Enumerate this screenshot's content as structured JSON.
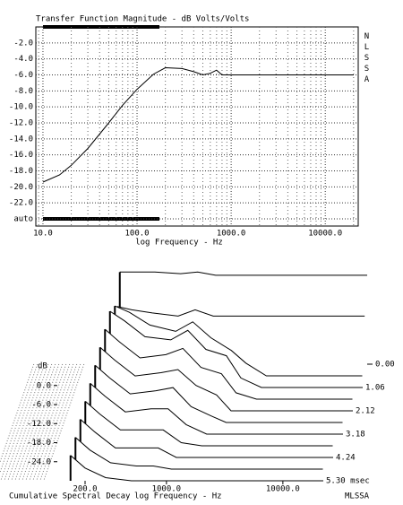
{
  "chart_data": [
    {
      "type": "line",
      "title": "Transfer Function Magnitude - dB Volts/Volts",
      "x_label": "log Frequency - Hz",
      "side_label": "NLSSA",
      "log_x": true,
      "grid": true,
      "color": "#000000",
      "x": [
        10,
        15,
        20,
        30,
        40,
        50,
        70,
        100,
        150,
        200,
        300,
        400,
        500,
        600,
        700,
        800,
        1000,
        20000
      ],
      "values": [
        -19.4,
        -18.5,
        -17.3,
        -15.2,
        -13.4,
        -12.0,
        -9.8,
        -7.8,
        -5.9,
        -5.1,
        -5.2,
        -5.6,
        -6.0,
        -5.8,
        -5.4,
        -6.0,
        -6.0,
        -6.0
      ],
      "xlim": [
        8.4,
        22400
      ],
      "xticks": [
        {
          "value": 10,
          "label": "10.0"
        },
        {
          "value": 100,
          "label": "100.0"
        },
        {
          "value": 1000,
          "label": "1000.0"
        },
        {
          "value": 10000,
          "label": "10000.0"
        }
      ],
      "ylim": [
        -24,
        0
      ],
      "yticks": [
        {
          "value": -2,
          "label": "-2.0"
        },
        {
          "value": -4,
          "label": "-4.0"
        },
        {
          "value": -6,
          "label": "-6.0"
        },
        {
          "value": -8,
          "label": "-8.0"
        },
        {
          "value": -10,
          "label": "-10.0"
        },
        {
          "value": -12,
          "label": "-12.0"
        },
        {
          "value": -14,
          "label": "-14.0"
        },
        {
          "value": -16,
          "label": "-16.0"
        },
        {
          "value": -18,
          "label": "-18.0"
        },
        {
          "value": -20,
          "label": "-20.0"
        },
        {
          "value": -22,
          "label": "-22.0"
        },
        {
          "value": -24,
          "label": "auto"
        }
      ]
    },
    {
      "type": "waterfall",
      "title": "Cumulative Spectral Decay",
      "x_label": "log Frequency - Hz",
      "y_label": "dB",
      "side_label": "MLSSA",
      "log_x": true,
      "color": "#000000",
      "x": [
        150,
        200,
        300,
        500,
        700,
        1000,
        1500,
        2000,
        3000,
        5000,
        10000,
        20000
      ],
      "xlim": [
        150,
        20000
      ],
      "xticks": [
        {
          "value": 200,
          "label": "200.0"
        },
        {
          "value": 1000,
          "label": "1000.0"
        },
        {
          "value": 10000,
          "label": "10000.0"
        }
      ],
      "ylim": [
        -30,
        0
      ],
      "yticks": [
        {
          "value": 0,
          "label": "0.0"
        },
        {
          "value": -6,
          "label": "-6.0"
        },
        {
          "value": -12,
          "label": "-12.0"
        },
        {
          "value": -18,
          "label": "-18.0"
        },
        {
          "value": -24,
          "label": "-24.0"
        }
      ],
      "tlim": [
        0,
        5.3
      ],
      "tticks": [
        {
          "value": 0,
          "label": "0.00"
        },
        1.06,
        2.12,
        3.18,
        4.24,
        {
          "value": 5.3,
          "label": "5.30 msec"
        }
      ],
      "series": [
        {
          "time": 0,
          "values": [
            -1,
            -1,
            -1,
            -1.5,
            -1,
            -2,
            -2,
            -2,
            -2,
            -2,
            -2,
            -2
          ]
        },
        {
          "time": 0.27,
          "values": [
            -10,
            -11,
            -12,
            -13,
            -11,
            -13,
            -13,
            -13,
            -13,
            -13,
            -13,
            -13
          ]
        },
        {
          "time": 0.53,
          "values": [
            -8,
            -10,
            -14,
            -16,
            -13,
            -18,
            -22,
            -26,
            -30,
            -30,
            -30,
            -30
          ]
        },
        {
          "time": 1.06,
          "values": [
            -6,
            -9,
            -14,
            -15,
            -12,
            -18,
            -20,
            -27,
            -30,
            -30,
            -30,
            -30
          ]
        },
        {
          "time": 1.59,
          "values": [
            -8,
            -12,
            -17,
            -16,
            -14,
            -20,
            -22,
            -28,
            -30,
            -30,
            -30,
            -30
          ]
        },
        {
          "time": 2.12,
          "values": [
            -10,
            -14,
            -19,
            -18,
            -17,
            -22,
            -25,
            -30,
            -30,
            -30,
            -30,
            -30
          ]
        },
        {
          "time": 2.65,
          "values": [
            -12,
            -16,
            -21,
            -20,
            -19,
            -25,
            -28,
            -30,
            -30,
            -30,
            -30,
            -30
          ]
        },
        {
          "time": 3.18,
          "values": [
            -14,
            -18,
            -23,
            -22,
            -22,
            -27,
            -30,
            -30,
            -30,
            -30,
            -30,
            -30
          ]
        },
        {
          "time": 3.71,
          "values": [
            -16,
            -20,
            -25,
            -25,
            -25,
            -29,
            -30,
            -30,
            -30,
            -30,
            -30,
            -30
          ]
        },
        {
          "time": 4.24,
          "values": [
            -18,
            -22,
            -27,
            -27,
            -27,
            -30,
            -30,
            -30,
            -30,
            -30,
            -30,
            -30
          ]
        },
        {
          "time": 4.77,
          "values": [
            -20,
            -24,
            -28,
            -29,
            -29,
            -30,
            -30,
            -30,
            -30,
            -30,
            -30,
            -30
          ]
        },
        {
          "time": 5.3,
          "values": [
            -22,
            -26,
            -29,
            -30,
            -30,
            -30,
            -30,
            -30,
            -30,
            -30,
            -30,
            -30
          ]
        }
      ]
    }
  ]
}
